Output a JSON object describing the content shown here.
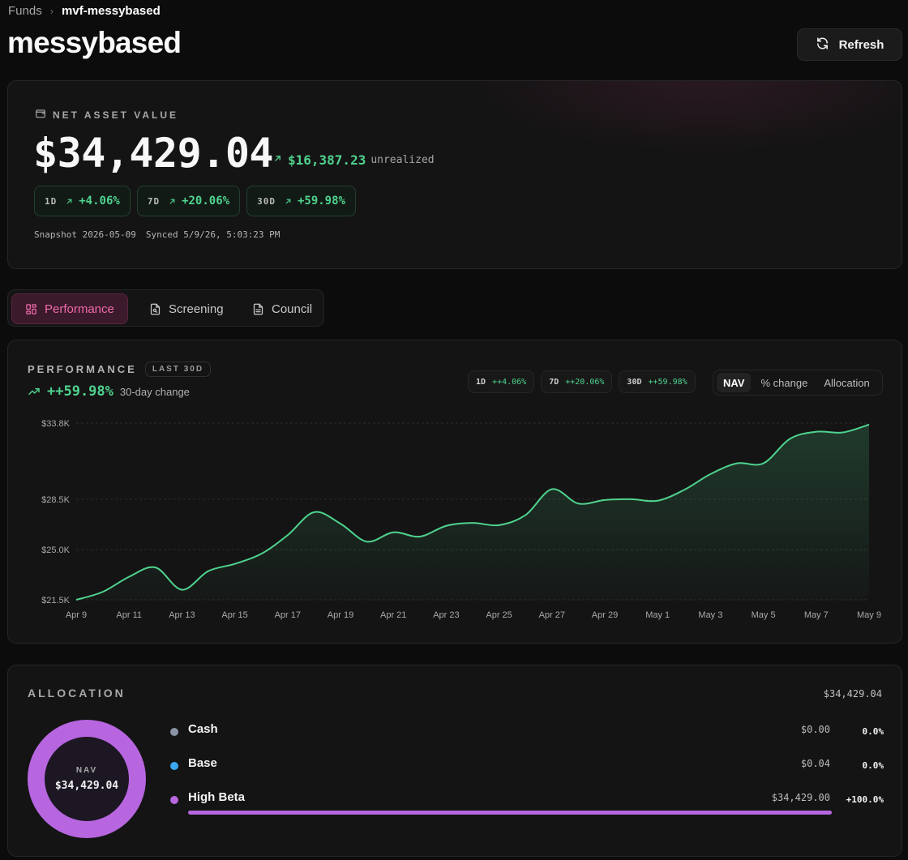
{
  "breadcrumb": {
    "parent": "Funds",
    "current": "mvf-messybased"
  },
  "page_title": "messybased",
  "refresh_label": "Refresh",
  "nav_card": {
    "label": "NET ASSET VALUE",
    "value": "$34,429.04",
    "unrealized_value": "$16,387.23",
    "unrealized_label": "unrealized",
    "changes": [
      {
        "period": "1D",
        "value": "+4.06%"
      },
      {
        "period": "7D",
        "value": "+20.06%"
      },
      {
        "period": "30D",
        "value": "+59.98%"
      }
    ],
    "snapshot_label": "Snapshot",
    "snapshot_date": "2026-05-09",
    "synced_label": "Synced",
    "synced_time": "5/9/26, 5:03:23 PM"
  },
  "tabs": [
    {
      "label": "Performance",
      "active": true,
      "icon": "grid-icon"
    },
    {
      "label": "Screening",
      "active": false,
      "icon": "file-search-icon"
    },
    {
      "label": "Council",
      "active": false,
      "icon": "document-icon"
    }
  ],
  "performance": {
    "title": "PERFORMANCE",
    "range_badge": "LAST 30D",
    "change_value": "++59.98%",
    "change_label": "30-day change",
    "mini_changes": [
      {
        "period": "1D",
        "value": "++4.06%"
      },
      {
        "period": "7D",
        "value": "++20.06%"
      },
      {
        "period": "30D",
        "value": "++59.98%"
      }
    ],
    "view_toggle": [
      "NAV",
      "% change",
      "Allocation"
    ],
    "active_view": "NAV"
  },
  "chart_data": {
    "type": "area",
    "x": [
      "Apr 9",
      "Apr 10",
      "Apr 11",
      "Apr 12",
      "Apr 13",
      "Apr 14",
      "Apr 15",
      "Apr 16",
      "Apr 17",
      "Apr 18",
      "Apr 19",
      "Apr 20",
      "Apr 21",
      "Apr 22",
      "Apr 23",
      "Apr 24",
      "Apr 25",
      "Apr 26",
      "Apr 27",
      "Apr 28",
      "Apr 29",
      "Apr 30",
      "May 1",
      "May 2",
      "May 3",
      "May 4",
      "May 5",
      "May 6",
      "May 7",
      "May 8",
      "May 9"
    ],
    "x_tick_labels": [
      "Apr 9",
      "Apr 11",
      "Apr 13",
      "Apr 15",
      "Apr 17",
      "Apr 19",
      "Apr 21",
      "Apr 23",
      "Apr 25",
      "Apr 27",
      "Apr 29",
      "May 1",
      "May 3",
      "May 5",
      "May 7",
      "May 9"
    ],
    "series": [
      {
        "values": [
          21500,
          22050,
          23100,
          23750,
          22200,
          23500,
          24000,
          24700,
          26000,
          27600,
          26800,
          25550,
          26200,
          25900,
          26650,
          26850,
          26700,
          27400,
          29200,
          28200,
          28450,
          28500,
          28400,
          29150,
          30250,
          31000,
          31000,
          32700,
          33200,
          33150,
          33700
        ],
        "color": "#4fd38e"
      }
    ],
    "y_ticks": [
      "$21.5K",
      "$25.0K",
      "$28.5K",
      "$33.8K"
    ],
    "y_tick_values": [
      21500,
      25000,
      28500,
      33800
    ],
    "ylim": [
      21500,
      33800
    ],
    "grid": true,
    "title": "",
    "xlabel": "",
    "ylabel": ""
  },
  "allocation": {
    "title": "ALLOCATION",
    "total": "$34,429.04",
    "donut_label": "NAV",
    "donut_value": "$34,429.04",
    "donut_color": "#b766e0",
    "rows": [
      {
        "name": "Cash",
        "amount": "$0.00",
        "pct": "0.0%",
        "color": "#8a94a6",
        "share": 0
      },
      {
        "name": "Base",
        "amount": "$0.04",
        "pct": "0.0%",
        "color": "#3ba7f0",
        "share": 0
      },
      {
        "name": "High Beta",
        "amount": "$34,429.00",
        "pct": "+100.0%",
        "color": "#b766e0",
        "share": 1
      }
    ]
  }
}
